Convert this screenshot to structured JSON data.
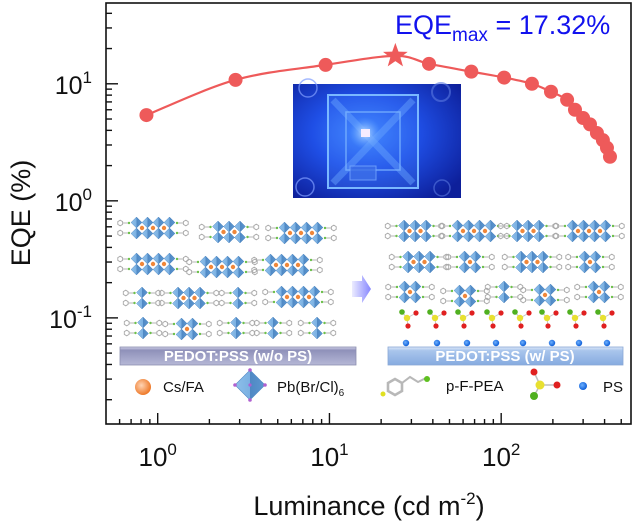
{
  "chart_data": {
    "type": "line",
    "title": "",
    "xlabel": {
      "text": "Luminance (cd m",
      "superscript": "-2",
      "suffix": ")"
    },
    "ylabel": "EQE (%)",
    "xscale": "log",
    "yscale": "log",
    "xlim": [
      0.5,
      570
    ],
    "ylim": [
      0.0124,
      49
    ],
    "grid": false,
    "legend": null,
    "x_ticks": [
      {
        "value": 1,
        "base": "10",
        "exp": "0"
      },
      {
        "value": 10,
        "base": "10",
        "exp": "1"
      },
      {
        "value": 100,
        "base": "10",
        "exp": "2"
      }
    ],
    "y_ticks": [
      {
        "value": 0.1,
        "base": "10",
        "exp": "-1"
      },
      {
        "value": 1,
        "base": "10",
        "exp": "0"
      },
      {
        "value": 10,
        "base": "10",
        "exp": "1"
      }
    ],
    "series": [
      {
        "name": "EQE",
        "color": "#ee5a5a",
        "marker": "circle",
        "max_index": 3,
        "max_marker": "star",
        "x": [
          0.86,
          2.84,
          9.5,
          24.2,
          38,
          67,
          104,
          151,
          195,
          242,
          269,
          300,
          329,
          361,
          391,
          413,
          430
        ],
        "y": [
          5.4,
          10.8,
          14.5,
          17.32,
          14.8,
          12.7,
          11.3,
          10.0,
          8.55,
          7.3,
          6.0,
          5.1,
          4.5,
          3.8,
          3.3,
          2.84,
          2.38
        ]
      }
    ],
    "annotation": {
      "main": "EQE",
      "sub": "max",
      "rest": " = 17.32%",
      "color": "#1212ee",
      "position": "top-right"
    }
  },
  "schematic": {
    "left_substrate_label": "PEDOT:PSS (w/o PS)",
    "right_substrate_label": "PEDOT:PSS (w/ PS)",
    "legend": {
      "cation_label": "Cs/FA",
      "octahedron_label": "Pb(Br/Cl)",
      "octahedron_sub": "6",
      "ligand_label": "p-F-PEA",
      "ps_label": "PS"
    },
    "colors": {
      "octahedron": "#5d97d0",
      "cation": "#f0873a",
      "ps_dot": "#1a70e0",
      "sulfur": "#e8e030",
      "oxygen": "#e02020",
      "nitrogen": "#50b020"
    }
  }
}
